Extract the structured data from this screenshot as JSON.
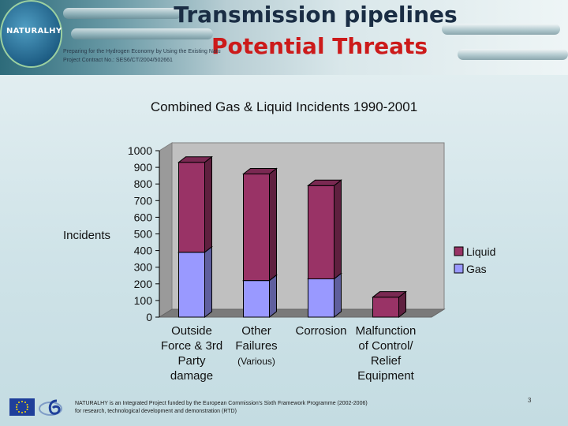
{
  "slide": {
    "title_line1": "Transmission pipelines",
    "title_line2": "Potential Threats",
    "logo_text": "NATURALHY",
    "project_line1": "Preparing for the Hydrogen Economy by Using the Existing Natural Gas System as a Catalyst",
    "project_line2": "Project Contract No.: SES6/CT/2004/502661",
    "footer_line1": "NATURALHY is an Integrated Project funded by the European Commission's Sixth Framework Programme (2002-2006)",
    "footer_line2": "for research, technological development and demonstration (RTD)",
    "page_number": "3"
  },
  "chart_data": {
    "type": "bar",
    "stacked": true,
    "title": "Combined Gas & Liquid Incidents 1990-2001",
    "ylabel": "Incidents",
    "xlabel": "",
    "ylim": [
      0,
      1000
    ],
    "yticks": [
      "0",
      "100",
      "200",
      "300",
      "400",
      "500",
      "600",
      "700",
      "800",
      "900",
      "1000"
    ],
    "categories": [
      [
        "Outside",
        "Force & 3rd",
        "Party",
        "damage"
      ],
      [
        "Other",
        "Failures",
        "(Various)"
      ],
      [
        "Corrosion"
      ],
      [
        "Malfunction",
        "of Control/",
        "Relief",
        "Equipment"
      ]
    ],
    "series": [
      {
        "name": "Gas",
        "color": "#9999ff",
        "values": [
          390,
          220,
          230,
          0
        ]
      },
      {
        "name": "Liquid",
        "color": "#993366",
        "values": [
          540,
          640,
          560,
          120
        ]
      }
    ],
    "legend_position": "right",
    "grid": false
  }
}
